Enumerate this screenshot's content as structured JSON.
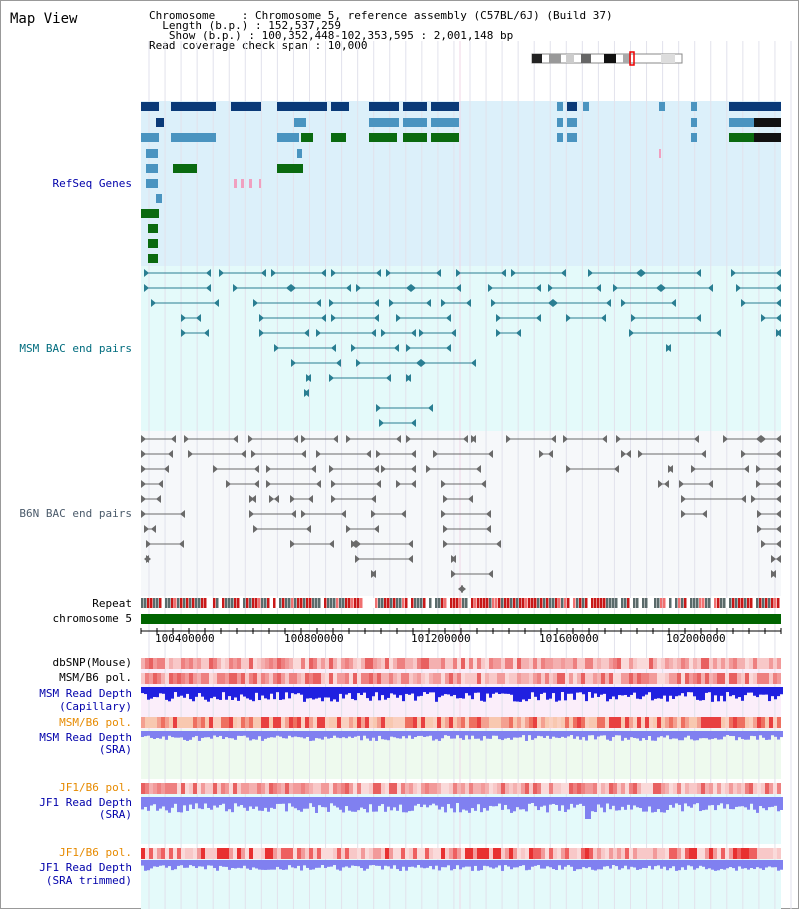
{
  "title": "Map View",
  "info": {
    "chromosome": "Chromosome    : Chromosome 5, reference assembly (C57BL/6J) (Build 37)",
    "length": "  Length (b.p.) : 152,537,259",
    "show": "   Show (b.p.) : 100,352,448-102,353,595 : 2,001,148 bp",
    "span": "Read coverage check span : 10,000"
  },
  "tracks": {
    "refseq": "RefSeq Genes",
    "msm_bac": "MSM BAC end pairs",
    "b6n_bac": "B6N BAC end pairs",
    "repeat": "Repeat",
    "chromosome": "chromosome 5",
    "dbsnp": "dbSNP(Mouse)",
    "msm_pol_1": "MSM/B6 pol.",
    "msm_depth_cap_1": "MSM Read Depth",
    "msm_depth_cap_2": "(Capillary)",
    "msm_pol_2": "MSM/B6 pol.",
    "msm_depth_sra_1": "MSM Read Depth",
    "msm_depth_sra_2": "(SRA)",
    "jf1_pol_1": "JF1/B6 pol.",
    "jf1_depth_sra_1": "JF1 Read Depth",
    "jf1_depth_sra_2": "(SRA)",
    "jf1_pol_2": "JF1/B6 pol.",
    "jf1_depth_trim_1": "JF1 Read Depth",
    "jf1_depth_trim_2": "(SRA trimmed)"
  },
  "axis": {
    "ticks": [
      "100400000",
      "100800000",
      "101200000",
      "101600000",
      "102000000"
    ]
  },
  "colors": {
    "refseq_bg": "#dcf0fa",
    "msm_bg": "#e4fafa",
    "b6n_bg": "#f6f8fa",
    "gene_dark": "#0a3a78",
    "gene_mid": "#4a94c0",
    "gene_green": "#0a6a10",
    "chrom_green": "#006400",
    "depth_blue": "#2020e0",
    "depth_light": "#8080f0"
  }
}
